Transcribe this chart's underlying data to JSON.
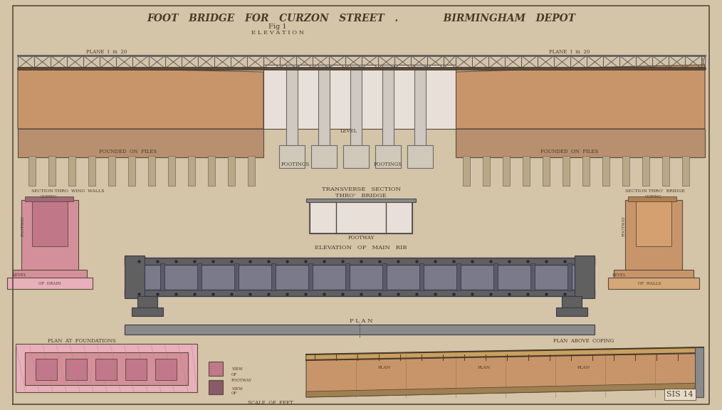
{
  "title": "FOOT   BRIDGE   FOR   CURZON   STREET   .             BIRMINGHAM   DEPOT",
  "fig1_label": "Fig 1",
  "elevation_label": "E L E V A T I O N",
  "bg_color": "#d4c4a8",
  "paper_color": "#c8b896",
  "border_color": "#5a4a3a",
  "line_color": "#2a2a2a",
  "earth_color": "#c8956a",
  "earth_dark": "#b07850",
  "pile_color": "#b89070",
  "pink_color": "#d4909a",
  "pink_light": "#e8b0ba",
  "grey_color": "#8a8a8a",
  "grey_dark": "#606060",
  "truss_color": "#606060",
  "steel_color": "#7a7a8a",
  "wood_color": "#c8a060"
}
